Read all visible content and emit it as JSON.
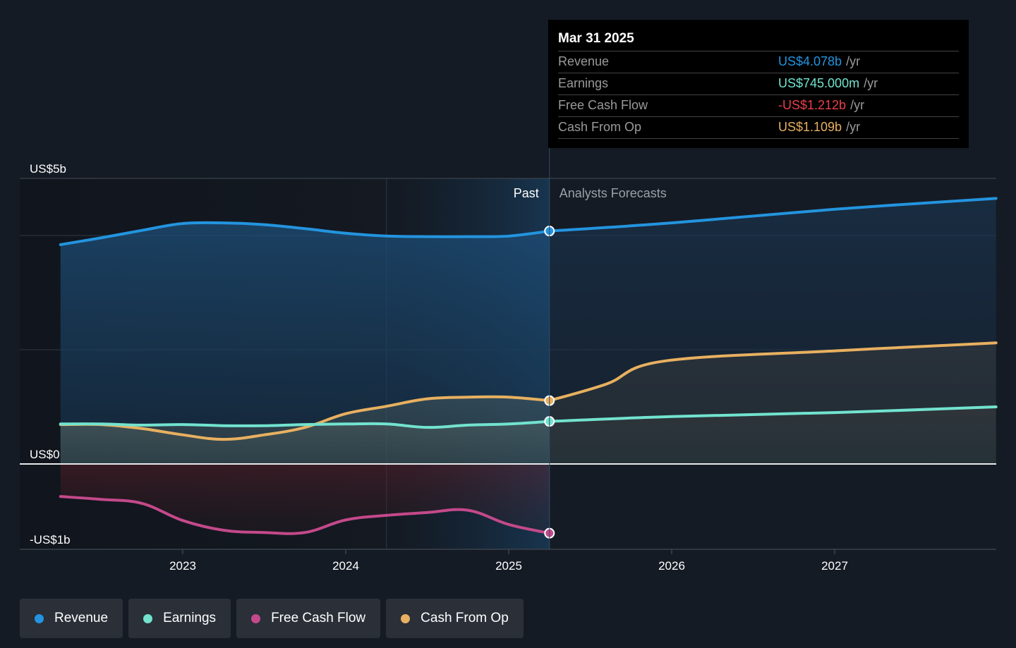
{
  "tooltip": {
    "date": "Mar 31 2025",
    "rows": [
      {
        "label": "Revenue",
        "value": "US$4.078b",
        "unit": "/yr",
        "color": "#2394df"
      },
      {
        "label": "Earnings",
        "value": "US$745.000m",
        "unit": "/yr",
        "color": "#72e3cf"
      },
      {
        "label": "Free Cash Flow",
        "value": "-US$1.212b",
        "unit": "/yr",
        "color": "#e8404a"
      },
      {
        "label": "Cash From Op",
        "value": "US$1.109b",
        "unit": "/yr",
        "color": "#e8b060"
      }
    ]
  },
  "legend": [
    {
      "label": "Revenue",
      "color": "#2394df"
    },
    {
      "label": "Earnings",
      "color": "#72e3cf"
    },
    {
      "label": "Free Cash Flow",
      "color": "#c4498b"
    },
    {
      "label": "Cash From Op",
      "color": "#e8b060"
    }
  ],
  "chart_data": {
    "type": "area",
    "title": "",
    "xlabel": "",
    "ylabel": "",
    "units": "US$ billions",
    "y_tick_labels": [
      {
        "value": 5,
        "label": "US$5b"
      },
      {
        "value": 0,
        "label": "US$0"
      },
      {
        "value": -1,
        "label": "-US$1b"
      }
    ],
    "ylim": [
      -1.5,
      5
    ],
    "xlim": [
      2022.25,
      2028.0
    ],
    "x_ticks": [
      2023,
      2024,
      2025,
      2026,
      2027
    ],
    "x_tick_labels": [
      "2023",
      "2024",
      "2025",
      "2026",
      "2027"
    ],
    "grid": true,
    "past_label": "Past",
    "forecast_label": "Analysts Forecasts",
    "divider_x": 2025.25,
    "highlight_start_x": 2024.25,
    "legend_position": "bottom-left",
    "series": [
      {
        "name": "Revenue",
        "color": "#2394df",
        "past_x": [
          2022.25,
          2022.5,
          2022.75,
          2023.0,
          2023.25,
          2023.5,
          2023.75,
          2024.0,
          2024.25,
          2024.5,
          2024.75,
          2025.0,
          2025.25
        ],
        "past_y": [
          3.84,
          3.96,
          4.09,
          4.21,
          4.22,
          4.19,
          4.12,
          4.04,
          3.99,
          3.98,
          3.98,
          3.99,
          4.078
        ],
        "forecast_x": [
          2025.25,
          2026.0,
          2027.0,
          2027.99
        ],
        "forecast_y": [
          4.078,
          4.22,
          4.46,
          4.65
        ]
      },
      {
        "name": "Earnings",
        "color": "#72e3cf",
        "past_x": [
          2022.25,
          2022.5,
          2022.75,
          2023.0,
          2023.25,
          2023.5,
          2023.75,
          2024.0,
          2024.25,
          2024.5,
          2024.75,
          2025.0,
          2025.25
        ],
        "past_y": [
          0.7,
          0.7,
          0.68,
          0.69,
          0.67,
          0.67,
          0.69,
          0.7,
          0.7,
          0.64,
          0.68,
          0.7,
          0.745
        ],
        "forecast_x": [
          2025.25,
          2026.0,
          2027.0,
          2027.99
        ],
        "forecast_y": [
          0.745,
          0.83,
          0.9,
          1.0
        ]
      },
      {
        "name": "Free Cash Flow",
        "color": "#c4498b",
        "past_x": [
          2022.25,
          2022.5,
          2022.75,
          2023.0,
          2023.25,
          2023.5,
          2023.75,
          2024.0,
          2024.25,
          2024.5,
          2024.75,
          2025.0,
          2025.25
        ],
        "past_y": [
          -0.57,
          -0.62,
          -0.69,
          -0.99,
          -1.16,
          -1.2,
          -1.2,
          -0.98,
          -0.9,
          -0.85,
          -0.81,
          -1.06,
          -1.212
        ],
        "forecast_x": [],
        "forecast_y": []
      },
      {
        "name": "Cash From Op",
        "color": "#e8b060",
        "past_x": [
          2022.25,
          2022.5,
          2022.75,
          2023.0,
          2023.25,
          2023.5,
          2023.75,
          2024.0,
          2024.25,
          2024.5,
          2024.75,
          2025.0,
          2025.25
        ],
        "past_y": [
          0.69,
          0.69,
          0.62,
          0.51,
          0.43,
          0.51,
          0.64,
          0.88,
          1.01,
          1.14,
          1.17,
          1.17,
          1.109
        ],
        "forecast_x": [
          2025.25,
          2025.6,
          2025.95,
          2027.0,
          2027.99
        ],
        "forecast_y": [
          1.109,
          1.4,
          1.8,
          1.98,
          2.12
        ]
      }
    ]
  }
}
